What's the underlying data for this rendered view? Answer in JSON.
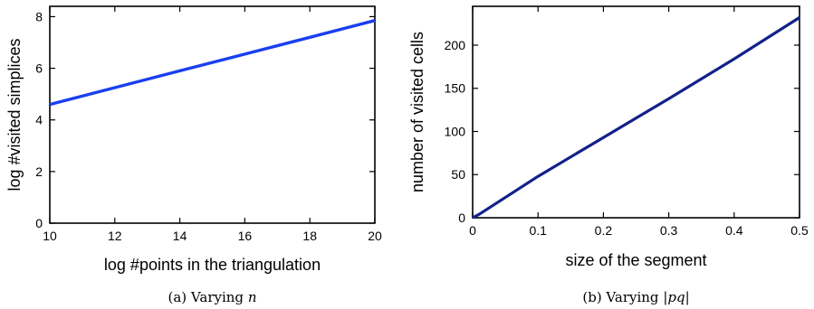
{
  "chart_data": [
    {
      "type": "line",
      "caption": "(a) Varying ",
      "caption_var": "n",
      "xlabel": "log #points in the triangulation",
      "ylabel": "log #visited simplices",
      "xlim": [
        10,
        20
      ],
      "ylim": [
        0,
        8.4
      ],
      "xticks": [
        "10",
        "12",
        "14",
        "16",
        "18",
        "20"
      ],
      "yticks": [
        "0",
        "2",
        "4",
        "6",
        "8"
      ],
      "grid": false,
      "series": [
        {
          "color": "#1a3ff0",
          "x": [
            10,
            12,
            14,
            16,
            18,
            20
          ],
          "y": [
            4.6,
            5.25,
            5.9,
            6.55,
            7.2,
            7.85
          ]
        }
      ]
    },
    {
      "type": "line",
      "caption": "(b) Varying ",
      "caption_var": "|pq|",
      "xlabel": "size of the segment",
      "ylabel": "number of visited cells",
      "xlim": [
        0,
        0.5
      ],
      "ylim": [
        0,
        245
      ],
      "xticks": [
        "0",
        "0.1",
        "0.2",
        "0.3",
        "0.4",
        "0.5"
      ],
      "yticks": [
        "0",
        "50",
        "100",
        "150",
        "200"
      ],
      "grid": false,
      "series": [
        {
          "color": "#12218a",
          "x": [
            0,
            0.01,
            0.1,
            0.2,
            0.3,
            0.4,
            0.5
          ],
          "y": [
            0,
            4,
            48,
            93,
            138,
            184,
            232
          ]
        }
      ]
    }
  ]
}
